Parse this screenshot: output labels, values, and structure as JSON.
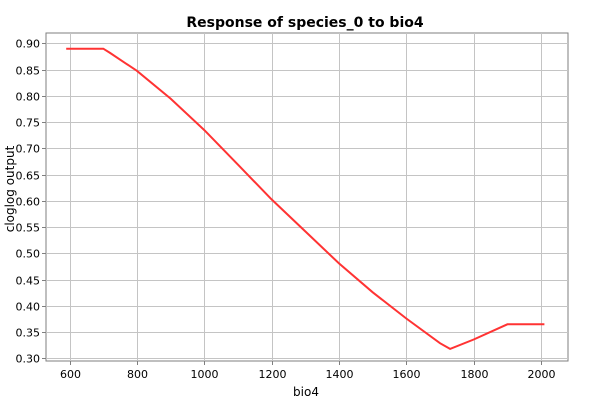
{
  "chart_data": {
    "type": "line",
    "title": "Response of species_0 to bio4",
    "xlabel": "bio4",
    "ylabel": "cloglog output",
    "xlim": [
      530,
      2080
    ],
    "ylim": [
      0.295,
      0.92
    ],
    "xticks": [
      600,
      800,
      1000,
      1200,
      1400,
      1600,
      1800,
      2000
    ],
    "yticks": [
      0.3,
      0.35,
      0.4,
      0.45,
      0.5,
      0.55,
      0.6,
      0.65,
      0.7,
      0.75,
      0.8,
      0.85,
      0.9
    ],
    "grid": true,
    "series": [
      {
        "name": "species_0",
        "color": "#ff3333",
        "x": [
          590,
          700,
          720,
          760,
          800,
          900,
          1000,
          1100,
          1200,
          1300,
          1400,
          1500,
          1600,
          1700,
          1730,
          1800,
          1900,
          2010
        ],
        "y": [
          0.89,
          0.89,
          0.882,
          0.865,
          0.848,
          0.795,
          0.735,
          0.669,
          0.603,
          0.542,
          0.481,
          0.426,
          0.376,
          0.329,
          0.318,
          0.336,
          0.365,
          0.365
        ]
      }
    ]
  }
}
